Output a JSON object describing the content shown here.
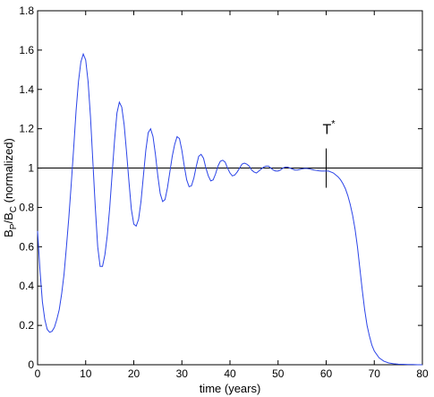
{
  "chart_data": {
    "type": "line",
    "title": "",
    "xlabel": "time (years)",
    "ylabel": {
      "base": "B",
      "sub1": "P",
      "mid": "/B",
      "sub2": "C",
      "suffix": " (normalized)"
    },
    "xlim": [
      0,
      80
    ],
    "ylim": [
      0,
      1.8
    ],
    "xticks": [
      0,
      10,
      20,
      30,
      40,
      50,
      60,
      70,
      80
    ],
    "yticks": [
      0,
      0.2,
      0.4,
      0.6,
      0.8,
      1,
      1.2,
      1.4,
      1.6,
      1.8
    ],
    "ytick_labels": [
      "0",
      "0.2",
      "0.4",
      "0.6",
      "0.8",
      "1",
      "1.2",
      "1.4",
      "1.6",
      "1.8"
    ],
    "grid": false,
    "colors": {
      "series": "#2b44e8",
      "reference": "#000000"
    },
    "reference_line": {
      "y": 1
    },
    "marker": {
      "x": 60,
      "y_range": [
        0.9,
        1.1
      ],
      "label": "T",
      "label_sup": "*"
    },
    "series": [
      {
        "x": [
          0,
          0.5,
          1,
          1.5,
          2,
          2.5,
          3,
          3.5,
          4,
          4.5,
          5,
          5.5,
          6,
          6.5,
          7,
          7.5,
          8,
          8.5,
          9,
          9.5,
          10,
          10.5,
          11,
          11.5,
          12,
          12.5,
          13,
          13.5,
          14,
          14.5,
          15,
          15.5,
          16,
          16.5,
          17,
          17.5,
          18,
          18.5,
          19,
          19.5,
          20,
          20.5,
          21,
          21.5,
          22,
          22.5,
          23,
          23.5,
          24,
          24.5,
          25,
          25.5,
          26,
          26.5,
          27,
          27.5,
          28,
          28.5,
          29,
          29.5,
          30,
          30.5,
          31,
          31.5,
          32,
          32.5,
          33,
          33.5,
          34,
          34.5,
          35,
          35.5,
          36,
          36.5,
          37,
          37.5,
          38,
          38.5,
          39,
          39.5,
          40,
          40.5,
          41,
          41.5,
          42,
          42.5,
          43,
          43.5,
          44,
          44.5,
          45,
          45.5,
          46,
          46.5,
          47,
          47.5,
          48,
          48.5,
          49,
          49.5,
          50,
          50.5,
          51,
          51.5,
          52,
          52.5,
          53,
          53.5,
          54,
          54.5,
          55,
          55.5,
          56,
          56.5,
          57,
          57.5,
          58,
          58.5,
          59,
          59.5,
          60,
          60.5,
          61,
          61.5,
          62,
          62.5,
          63,
          63.5,
          64,
          64.5,
          65,
          65.5,
          66,
          66.5,
          67,
          67.5,
          68,
          68.5,
          69,
          69.5,
          70,
          71,
          72,
          73,
          74,
          75,
          76,
          77,
          78,
          79,
          80
        ],
        "values": [
          0.68,
          0.48,
          0.32,
          0.23,
          0.18,
          0.165,
          0.17,
          0.19,
          0.23,
          0.28,
          0.36,
          0.46,
          0.6,
          0.75,
          0.92,
          1.1,
          1.29,
          1.44,
          1.54,
          1.58,
          1.55,
          1.44,
          1.26,
          1.03,
          0.8,
          0.6,
          0.5,
          0.5,
          0.56,
          0.66,
          0.8,
          0.97,
          1.14,
          1.28,
          1.335,
          1.31,
          1.22,
          1.08,
          0.93,
          0.79,
          0.715,
          0.705,
          0.74,
          0.83,
          0.96,
          1.09,
          1.18,
          1.2,
          1.16,
          1.07,
          0.96,
          0.87,
          0.83,
          0.84,
          0.9,
          0.98,
          1.06,
          1.12,
          1.16,
          1.15,
          1.09,
          1.01,
          0.94,
          0.905,
          0.91,
          0.95,
          1.01,
          1.06,
          1.07,
          1.05,
          1.0,
          0.96,
          0.935,
          0.94,
          0.97,
          1.01,
          1.035,
          1.04,
          1.03,
          1.0,
          0.975,
          0.96,
          0.965,
          0.98,
          1.0,
          1.02,
          1.025,
          1.02,
          1.01,
          0.99,
          0.98,
          0.975,
          0.985,
          0.995,
          1.005,
          1.01,
          1.01,
          1.0,
          0.99,
          0.985,
          0.985,
          0.99,
          1.0,
          1.005,
          1.005,
          1.0,
          0.995,
          0.99,
          0.99,
          0.993,
          0.996,
          0.998,
          0.998,
          0.996,
          0.993,
          0.99,
          0.988,
          0.986,
          0.985,
          0.985,
          0.985,
          0.985,
          0.98,
          0.975,
          0.965,
          0.955,
          0.94,
          0.92,
          0.895,
          0.86,
          0.815,
          0.76,
          0.69,
          0.6,
          0.49,
          0.38,
          0.28,
          0.2,
          0.145,
          0.1,
          0.07,
          0.035,
          0.018,
          0.009,
          0.005,
          0.003,
          0.002,
          0.001,
          0.001,
          0.0,
          0.0
        ]
      }
    ]
  }
}
